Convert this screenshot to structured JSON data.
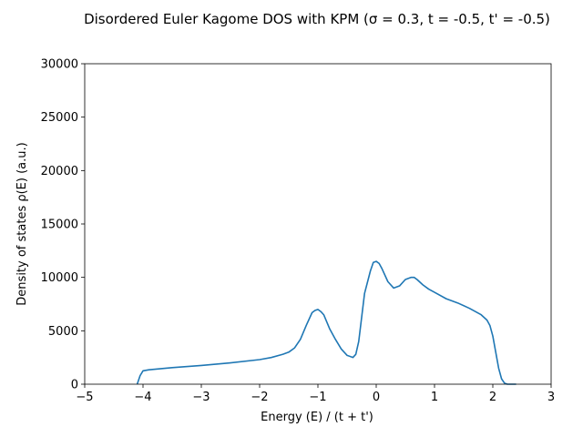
{
  "chart_data": {
    "type": "line",
    "title": "Disordered Euler Kagome DOS with KPM (σ = 0.3, t = -0.5, t' = -0.5)",
    "xlabel": "Energy (E) / (t + t')",
    "ylabel": "Density of states ρ(E) (a.u.)",
    "xlim": [
      -5,
      3
    ],
    "ylim": [
      0,
      30000
    ],
    "xticks": [
      -5,
      -4,
      -3,
      -2,
      -1,
      0,
      1,
      2,
      3
    ],
    "xtick_labels": [
      "−5",
      "−4",
      "−3",
      "−2",
      "−1",
      "0",
      "1",
      "2",
      "3"
    ],
    "yticks": [
      0,
      5000,
      10000,
      15000,
      20000,
      25000,
      30000
    ],
    "ytick_labels": [
      "0",
      "5000",
      "10000",
      "15000",
      "20000",
      "25000",
      "30000"
    ],
    "grid": false,
    "color": "#1f77b4",
    "series": [
      {
        "x": [
          -4.1,
          -4.05,
          -4.0,
          -3.9,
          -3.5,
          -3.0,
          -2.5,
          -2.0,
          -1.8,
          -1.6,
          -1.5,
          -1.4,
          -1.3,
          -1.2,
          -1.1,
          -1.05,
          -1.0,
          -0.95,
          -0.9,
          -0.8,
          -0.7,
          -0.6,
          -0.5,
          -0.4,
          -0.35,
          -0.3,
          -0.2,
          -0.1,
          -0.05,
          0.0,
          0.05,
          0.1,
          0.2,
          0.3,
          0.4,
          0.5,
          0.6,
          0.65,
          0.7,
          0.8,
          0.9,
          1.0,
          1.2,
          1.4,
          1.6,
          1.8,
          1.9,
          1.95,
          2.0,
          2.05,
          2.1,
          2.15,
          2.2,
          2.25,
          2.3,
          2.4
        ],
        "y": [
          0,
          800,
          1250,
          1350,
          1550,
          1750,
          2000,
          2300,
          2500,
          2800,
          3000,
          3400,
          4200,
          5500,
          6700,
          6900,
          7000,
          6800,
          6500,
          5200,
          4200,
          3300,
          2700,
          2500,
          2800,
          4000,
          8500,
          10600,
          11400,
          11500,
          11300,
          10800,
          9600,
          9000,
          9200,
          9800,
          10000,
          10000,
          9800,
          9300,
          8900,
          8600,
          8000,
          7600,
          7100,
          6500,
          6000,
          5500,
          4500,
          3000,
          1500,
          500,
          100,
          0,
          0,
          0
        ]
      }
    ]
  }
}
